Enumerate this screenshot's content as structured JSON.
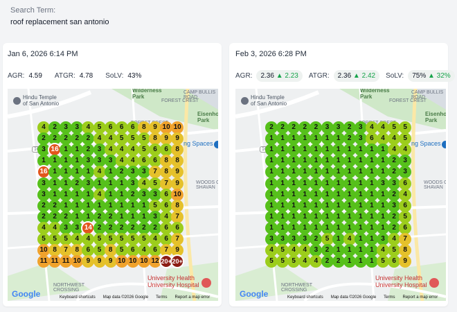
{
  "search": {
    "label": "Search Term:",
    "value": "roof replacement san antonio"
  },
  "colors": {
    "green": "#56c01b",
    "lime": "#9ccd1c",
    "yellow": "#e5c12b",
    "orange": "#f0a22c",
    "red": "#e2561d",
    "darkred": "#8c1c14"
  },
  "map_labels": {
    "temple": "Hindu Temple\nof San Antonio",
    "wilderness": "Wilderness\nPark",
    "camp_bullis": "CAMP BULLIS\nROAD",
    "forest_crest_1": "FOREST CREST",
    "forest_crest_2": "FOREST CREST",
    "eisenhower": "Eisenhow\nPark",
    "spaces": "ng Spaces",
    "woods": "WOODS O\nSHAVAN",
    "northwest": "NORTHWEST\nCROSSING",
    "hospital": "University Health\nUniversity Hospital",
    "route": "16",
    "google": "Google",
    "footer": {
      "shortcuts": "Keyboard shortcuts",
      "mapdata": "Map data ©2026 Google",
      "terms": "Terms",
      "report": "Report a map error"
    }
  },
  "cards": [
    {
      "date": "Jan 6, 2026 6:14 PM",
      "agr_label": "AGR:",
      "agr": "4.59",
      "atgr_label": "ATGR:",
      "atgr": "4.78",
      "solv_label": "SoLV:",
      "solv": "43%",
      "grid": [
        [
          "4",
          "2",
          "3",
          "3",
          "4",
          "5",
          "6",
          "6",
          "6",
          "8",
          "9",
          "10",
          "10"
        ],
        [
          "2",
          "2",
          "2",
          "2",
          "2",
          "4",
          "4",
          "5",
          "5",
          "5",
          "8",
          "9",
          "9"
        ],
        [
          "3",
          "16",
          "1",
          "1",
          "2",
          "3",
          "4",
          "4",
          "4",
          "5",
          "6",
          "6",
          "8"
        ],
        [
          "1",
          "1",
          "1",
          "1",
          "3",
          "3",
          "3",
          "4",
          "4",
          "6",
          "6",
          "8",
          "8"
        ],
        [
          "16",
          "1",
          "1",
          "1",
          "1",
          "4",
          "1",
          "2",
          "3",
          "3",
          "7",
          "8",
          "9"
        ],
        [
          "3",
          "1",
          "1",
          "2",
          "3",
          "1",
          "1",
          "1",
          "3",
          "4",
          "5",
          "7",
          "9"
        ],
        [
          "3",
          "1",
          "1",
          "1",
          "1",
          "4",
          "1",
          "1",
          "2",
          "3",
          "3",
          "6",
          "10"
        ],
        [
          "2",
          "2",
          "1",
          "1",
          "1",
          "1",
          "1",
          "1",
          "1",
          "1",
          "5",
          "6",
          "8"
        ],
        [
          "2",
          "2",
          "2",
          "1",
          "1",
          "2",
          "2",
          "1",
          "1",
          "1",
          "3",
          "4",
          "7"
        ],
        [
          "4",
          "4",
          "3",
          "3",
          "14",
          "2",
          "2",
          "2",
          "2",
          "2",
          "2",
          "6",
          "6"
        ],
        [
          "5",
          "5",
          "5",
          "4",
          "4",
          "5",
          "5",
          "5",
          "5",
          "5",
          "4",
          "6",
          "7"
        ],
        [
          "10",
          "8",
          "7",
          "8",
          "6",
          "5",
          "8",
          "5",
          "6",
          "4",
          "6",
          "7",
          "9"
        ],
        [
          "11",
          "11",
          "11",
          "10",
          "9",
          "9",
          "9",
          "10",
          "10",
          "10",
          "12",
          "20+",
          "20+"
        ]
      ]
    },
    {
      "date": "Feb 3, 2026 6:28 PM",
      "agr_label": "AGR:",
      "agr": "2.36",
      "agr_change": "▲ 2.23",
      "atgr_label": "ATGR:",
      "atgr": "2.36",
      "atgr_change": "▲ 2.42",
      "solv_label": "SoLV:",
      "solv": "75%",
      "solv_change": "▲ 32%",
      "grid": [
        [
          "2",
          "2",
          "2",
          "2",
          "2",
          "3",
          "3",
          "2",
          "3",
          "4",
          "4",
          "5",
          "5"
        ],
        [
          "1",
          "1",
          "1",
          "1",
          "1",
          "1",
          "1",
          "2",
          "3",
          "6",
          "4",
          "4",
          "5"
        ],
        [
          "1",
          "1",
          "1",
          "1",
          "1",
          "1",
          "1",
          "1",
          "1",
          "1",
          "1",
          "4",
          "4"
        ],
        [
          "1",
          "1",
          "1",
          "1",
          "1",
          "1",
          "1",
          "1",
          "1",
          "1",
          "1",
          "2",
          "3"
        ],
        [
          "1",
          "1",
          "1",
          "1",
          "1",
          "1",
          "1",
          "1",
          "1",
          "1",
          "1",
          "2",
          "3"
        ],
        [
          "1",
          "1",
          "1",
          "1",
          "1",
          "1",
          "1",
          "1",
          "1",
          "1",
          "3",
          "3",
          "6"
        ],
        [
          "1",
          "1",
          "1",
          "1",
          "1",
          "1",
          "1",
          "1",
          "1",
          "1",
          "1",
          "2",
          "4"
        ],
        [
          "1",
          "1",
          "1",
          "1",
          "1",
          "1",
          "1",
          "1",
          "1",
          "1",
          "1",
          "3",
          "6"
        ],
        [
          "1",
          "1",
          "1",
          "1",
          "1",
          "1",
          "1",
          "1",
          "1",
          "1",
          "1",
          "2",
          "5"
        ],
        [
          "1",
          "1",
          "1",
          "1",
          "1",
          "1",
          "1",
          "1",
          "1",
          "1",
          "1",
          "2",
          "6"
        ],
        [
          "3",
          "3",
          "3",
          "3",
          "2",
          "5",
          "1",
          "4",
          "1",
          "1",
          "3",
          "4",
          "7"
        ],
        [
          "4",
          "5",
          "4",
          "4",
          "3",
          "2",
          "1",
          "1",
          "1",
          "1",
          "4",
          "5",
          "8"
        ],
        [
          "5",
          "5",
          "5",
          "4",
          "4",
          "2",
          "2",
          "1",
          "1",
          "1",
          "5",
          "6",
          "9"
        ]
      ]
    }
  ]
}
